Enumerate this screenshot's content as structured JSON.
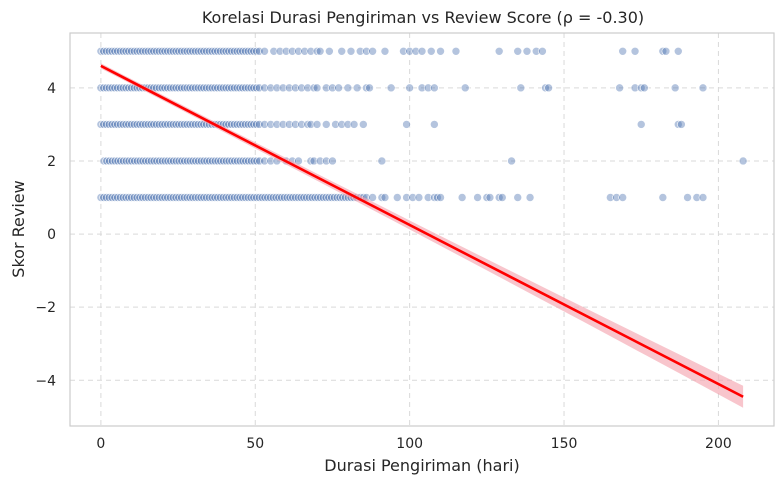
{
  "chart_data": {
    "type": "scatter",
    "title": "Korelasi Durasi Pengiriman vs Review Score (ρ = -0.30)",
    "xlabel": "Durasi Pengiriman (hari)",
    "ylabel": "Skor Review",
    "xlim": [
      -10,
      218
    ],
    "ylim": [
      -5.25,
      5.5
    ],
    "xticks": [
      0,
      50,
      100,
      150,
      200
    ],
    "yticks": [
      -4,
      -2,
      0,
      2,
      4
    ],
    "ytick_labels": [
      "−4",
      "−2",
      "0",
      "2",
      "4"
    ],
    "grid": true,
    "colors": {
      "points": "#4c72b0",
      "regression": "#ff0000",
      "confidence_band": "#f4a6b0",
      "grid": "#d9d9d9"
    },
    "dense_bands": [
      {
        "y": 5,
        "x_from": 0,
        "x_to": 52
      },
      {
        "y": 4,
        "x_from": 0,
        "x_to": 52
      },
      {
        "y": 3,
        "x_from": 0,
        "x_to": 52
      },
      {
        "y": 2,
        "x_from": 1,
        "x_to": 52
      },
      {
        "y": 1,
        "x_from": 0,
        "x_to": 83
      }
    ],
    "points": [
      {
        "x": 53,
        "y": 5
      },
      {
        "x": 56,
        "y": 5
      },
      {
        "x": 58,
        "y": 5
      },
      {
        "x": 60,
        "y": 5
      },
      {
        "x": 62,
        "y": 5
      },
      {
        "x": 64,
        "y": 5
      },
      {
        "x": 66,
        "y": 5
      },
      {
        "x": 68,
        "y": 5
      },
      {
        "x": 70,
        "y": 5
      },
      {
        "x": 71,
        "y": 5
      },
      {
        "x": 74,
        "y": 5
      },
      {
        "x": 78,
        "y": 5
      },
      {
        "x": 81,
        "y": 5
      },
      {
        "x": 84,
        "y": 5
      },
      {
        "x": 86,
        "y": 5
      },
      {
        "x": 88,
        "y": 5
      },
      {
        "x": 92,
        "y": 5
      },
      {
        "x": 98,
        "y": 5
      },
      {
        "x": 100,
        "y": 5
      },
      {
        "x": 102,
        "y": 5
      },
      {
        "x": 104,
        "y": 5
      },
      {
        "x": 107,
        "y": 5
      },
      {
        "x": 110,
        "y": 5
      },
      {
        "x": 115,
        "y": 5
      },
      {
        "x": 129,
        "y": 5
      },
      {
        "x": 135,
        "y": 5
      },
      {
        "x": 138,
        "y": 5
      },
      {
        "x": 141,
        "y": 5
      },
      {
        "x": 143,
        "y": 5
      },
      {
        "x": 169,
        "y": 5
      },
      {
        "x": 173,
        "y": 5
      },
      {
        "x": 182,
        "y": 5
      },
      {
        "x": 183,
        "y": 5
      },
      {
        "x": 187,
        "y": 5
      },
      {
        "x": 53,
        "y": 4
      },
      {
        "x": 55,
        "y": 4
      },
      {
        "x": 57,
        "y": 4
      },
      {
        "x": 59,
        "y": 4
      },
      {
        "x": 61,
        "y": 4
      },
      {
        "x": 63,
        "y": 4
      },
      {
        "x": 65,
        "y": 4
      },
      {
        "x": 67,
        "y": 4
      },
      {
        "x": 69,
        "y": 4
      },
      {
        "x": 70,
        "y": 4
      },
      {
        "x": 73,
        "y": 4
      },
      {
        "x": 75,
        "y": 4
      },
      {
        "x": 77,
        "y": 4
      },
      {
        "x": 80,
        "y": 4
      },
      {
        "x": 83,
        "y": 4
      },
      {
        "x": 86,
        "y": 4
      },
      {
        "x": 87,
        "y": 4
      },
      {
        "x": 94,
        "y": 4
      },
      {
        "x": 100,
        "y": 4
      },
      {
        "x": 104,
        "y": 4
      },
      {
        "x": 106,
        "y": 4
      },
      {
        "x": 108,
        "y": 4
      },
      {
        "x": 118,
        "y": 4
      },
      {
        "x": 136,
        "y": 4
      },
      {
        "x": 144,
        "y": 4
      },
      {
        "x": 145,
        "y": 4
      },
      {
        "x": 168,
        "y": 4
      },
      {
        "x": 173,
        "y": 4
      },
      {
        "x": 175,
        "y": 4
      },
      {
        "x": 176,
        "y": 4
      },
      {
        "x": 186,
        "y": 4
      },
      {
        "x": 195,
        "y": 4
      },
      {
        "x": 53,
        "y": 3
      },
      {
        "x": 55,
        "y": 3
      },
      {
        "x": 57,
        "y": 3
      },
      {
        "x": 59,
        "y": 3
      },
      {
        "x": 61,
        "y": 3
      },
      {
        "x": 63,
        "y": 3
      },
      {
        "x": 65,
        "y": 3
      },
      {
        "x": 67,
        "y": 3
      },
      {
        "x": 68,
        "y": 3
      },
      {
        "x": 70,
        "y": 3
      },
      {
        "x": 73,
        "y": 3
      },
      {
        "x": 76,
        "y": 3
      },
      {
        "x": 78,
        "y": 3
      },
      {
        "x": 80,
        "y": 3
      },
      {
        "x": 82,
        "y": 3
      },
      {
        "x": 85,
        "y": 3
      },
      {
        "x": 99,
        "y": 3
      },
      {
        "x": 108,
        "y": 3
      },
      {
        "x": 175,
        "y": 3
      },
      {
        "x": 187,
        "y": 3
      },
      {
        "x": 188,
        "y": 3
      },
      {
        "x": 53,
        "y": 2
      },
      {
        "x": 55,
        "y": 2
      },
      {
        "x": 57,
        "y": 2
      },
      {
        "x": 60,
        "y": 2
      },
      {
        "x": 62,
        "y": 2
      },
      {
        "x": 64,
        "y": 2
      },
      {
        "x": 68,
        "y": 2
      },
      {
        "x": 69,
        "y": 2
      },
      {
        "x": 71,
        "y": 2
      },
      {
        "x": 73,
        "y": 2
      },
      {
        "x": 75,
        "y": 2
      },
      {
        "x": 91,
        "y": 2
      },
      {
        "x": 133,
        "y": 2
      },
      {
        "x": 208,
        "y": 2
      },
      {
        "x": 84,
        "y": 1
      },
      {
        "x": 85,
        "y": 1
      },
      {
        "x": 86,
        "y": 1
      },
      {
        "x": 88,
        "y": 1
      },
      {
        "x": 91,
        "y": 1
      },
      {
        "x": 92,
        "y": 1
      },
      {
        "x": 96,
        "y": 1
      },
      {
        "x": 99,
        "y": 1
      },
      {
        "x": 101,
        "y": 1
      },
      {
        "x": 103,
        "y": 1
      },
      {
        "x": 106,
        "y": 1
      },
      {
        "x": 108,
        "y": 1
      },
      {
        "x": 109,
        "y": 1
      },
      {
        "x": 110,
        "y": 1
      },
      {
        "x": 117,
        "y": 1
      },
      {
        "x": 122,
        "y": 1
      },
      {
        "x": 125,
        "y": 1
      },
      {
        "x": 126,
        "y": 1
      },
      {
        "x": 129,
        "y": 1
      },
      {
        "x": 130,
        "y": 1
      },
      {
        "x": 135,
        "y": 1
      },
      {
        "x": 139,
        "y": 1
      },
      {
        "x": 165,
        "y": 1
      },
      {
        "x": 167,
        "y": 1
      },
      {
        "x": 169,
        "y": 1
      },
      {
        "x": 182,
        "y": 1
      },
      {
        "x": 190,
        "y": 1
      },
      {
        "x": 193,
        "y": 1
      },
      {
        "x": 195,
        "y": 1
      }
    ],
    "regression": {
      "x": [
        0,
        208
      ],
      "y": [
        4.6,
        -4.45
      ],
      "ci_halfwidth": [
        0.07,
        0.3
      ]
    }
  }
}
